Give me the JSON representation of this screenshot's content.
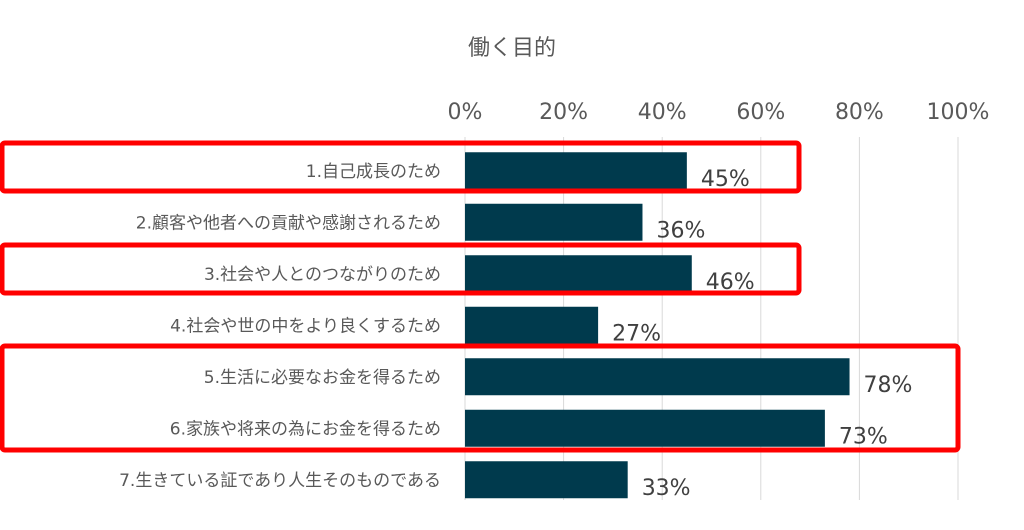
{
  "chart_data": {
    "type": "bar",
    "orientation": "horizontal",
    "title": "働く目的",
    "categories": [
      "1.自己成長のため",
      "2.顧客や他者への貢献や感謝されるため",
      "3.社会や人とのつながりのため",
      "4.社会や世の中をより良くするため",
      "5.生活に必要なお金を得るため",
      "6.家族や将来の為にお金を得るため",
      "7.生きている証であり人生そのものである"
    ],
    "values": [
      45,
      36,
      46,
      27,
      78,
      73,
      33
    ],
    "value_labels": [
      "45%",
      "36%",
      "46%",
      "27%",
      "78%",
      "73%",
      "33%"
    ],
    "xlim": [
      0,
      100
    ],
    "x_ticks": [
      0,
      20,
      40,
      60,
      80,
      100
    ],
    "x_tick_labels": [
      "0%",
      "20%",
      "40%",
      "60%",
      "80%",
      "100%"
    ],
    "x_axis_position": "top",
    "grid": "vertical",
    "bar_color": "#003a4d",
    "highlight_color": "#ff0000",
    "highlight_groups": [
      [
        0
      ],
      [
        2
      ],
      [
        4,
        5
      ]
    ]
  }
}
